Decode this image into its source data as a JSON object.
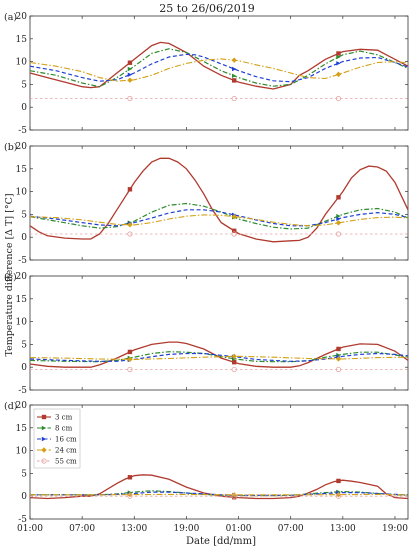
{
  "figure": {
    "title": "25 to 26/06/2019",
    "xlabel": "Date [dd/mm]",
    "ylabel": "Temperature difference [Δ T]  [°C]"
  },
  "colors": {
    "3 cm": "#b03a2e",
    "8 cm": "#2e8b2e",
    "16 cm": "#1f3fd6",
    "24 cm": "#d4a017",
    "55 cm": "#e8a3a3"
  },
  "chart_data": [
    {
      "type": "line",
      "panel_label": "(a)",
      "x_ticks": [
        "01:00",
        "07:00",
        "13:00",
        "19:00",
        "01:00",
        "07:00",
        "13:00",
        "19:00"
      ],
      "ylim": [
        -5,
        20
      ],
      "y_ticks": [
        -5,
        0,
        5,
        10,
        15,
        20
      ],
      "grid": false,
      "legend": false,
      "series": [
        {
          "name": "3 cm",
          "x": [
            0,
            2,
            4,
            6,
            7,
            8,
            10,
            12,
            14,
            15,
            16,
            18,
            20,
            22,
            24,
            26,
            28,
            30,
            31,
            32,
            34,
            36,
            38,
            40,
            41,
            42,
            43.5
          ],
          "values": [
            7.5,
            6.5,
            5.5,
            4.5,
            4.3,
            4.5,
            7.5,
            10.5,
            13.5,
            14.2,
            14,
            12,
            9,
            7,
            5.5,
            4.6,
            4.0,
            5.0,
            7.0,
            8.0,
            10.5,
            12.2,
            12.7,
            12.5,
            11.5,
            10.5,
            9
          ]
        },
        {
          "name": "8 cm",
          "x": [
            0,
            3,
            6,
            8,
            10,
            12,
            14,
            16,
            18,
            20,
            22,
            24,
            26,
            28,
            30,
            32,
            34,
            36,
            38,
            40,
            42,
            43.5
          ],
          "values": [
            8,
            7,
            5.3,
            4.5,
            6.5,
            9,
            11.8,
            12.8,
            12,
            10,
            8,
            6.5,
            5.3,
            4.6,
            5,
            7,
            9.5,
            11.5,
            12.3,
            11.5,
            9.8,
            8.5
          ]
        },
        {
          "name": "16 cm",
          "x": [
            0,
            3,
            6,
            8,
            10,
            12,
            14,
            16,
            18,
            19,
            20,
            22,
            24,
            26,
            28,
            30,
            32,
            34,
            36,
            38,
            40,
            42,
            43.5
          ],
          "values": [
            9,
            8,
            6.5,
            5.7,
            6,
            7.5,
            9.5,
            11,
            11.6,
            11.5,
            11,
            9.5,
            8,
            6.7,
            5.8,
            5.6,
            6.5,
            8.5,
            10,
            10.8,
            10.9,
            9.8,
            8.8
          ]
        },
        {
          "name": "24 cm",
          "x": [
            0,
            3,
            6,
            8,
            10,
            12,
            14,
            16,
            18,
            20,
            22,
            24,
            26,
            28,
            30,
            32,
            34,
            36,
            38,
            40,
            42,
            43.5
          ],
          "values": [
            9.8,
            9,
            7.8,
            6.5,
            5.7,
            6,
            7,
            8.5,
            9.6,
            10.3,
            10.6,
            10.2,
            9.3,
            8.5,
            7.5,
            6.5,
            6.3,
            7.5,
            8.8,
            9.8,
            10,
            9.7
          ]
        },
        {
          "name": "55 cm",
          "x": [
            0,
            43.5
          ],
          "values": [
            1.9,
            1.9
          ]
        }
      ]
    },
    {
      "type": "line",
      "panel_label": "(b)",
      "x_ticks": [
        "01:00",
        "07:00",
        "13:00",
        "19:00",
        "01:00",
        "07:00",
        "13:00",
        "19:00"
      ],
      "ylim": [
        -5,
        20
      ],
      "y_ticks": [
        -5,
        0,
        5,
        10,
        15,
        20
      ],
      "grid": false,
      "legend": false,
      "series": [
        {
          "name": "3 cm",
          "x": [
            0,
            1,
            2,
            4,
            6,
            7,
            8,
            9,
            10,
            11,
            12,
            13,
            14,
            15,
            16,
            17,
            18,
            19,
            20,
            21,
            22,
            24,
            26,
            28,
            30,
            31,
            32,
            33,
            34,
            35,
            36,
            37,
            38,
            39,
            40,
            41,
            42,
            43.5
          ],
          "values": [
            2.5,
            1.2,
            0.3,
            -0.2,
            -0.4,
            -0.4,
            0.7,
            3,
            6,
            9,
            12,
            14.5,
            16.5,
            17.3,
            17.3,
            16.5,
            15,
            12.5,
            9.5,
            6,
            3.2,
            0.8,
            -0.4,
            -1.0,
            -0.8,
            -0.7,
            0,
            2,
            5,
            7.5,
            10,
            13,
            14.8,
            15.6,
            15.4,
            14.5,
            12,
            6
          ]
        },
        {
          "name": "8 cm",
          "x": [
            0,
            3,
            6,
            8,
            10,
            12,
            14,
            16,
            18,
            20,
            22,
            24,
            26,
            28,
            30,
            32,
            34,
            36,
            38,
            40,
            42,
            43.5
          ],
          "values": [
            4.5,
            3.5,
            2.5,
            2,
            2.3,
            3.5,
            5.5,
            7,
            7.4,
            6.8,
            5.5,
            4,
            3,
            2.2,
            1.8,
            2,
            3.5,
            5,
            6,
            6.3,
            5.5,
            4.2
          ]
        },
        {
          "name": "16 cm",
          "x": [
            0,
            3,
            6,
            8,
            10,
            12,
            14,
            16,
            18,
            20,
            22,
            24,
            26,
            28,
            30,
            32,
            34,
            36,
            38,
            40,
            42,
            43.5
          ],
          "values": [
            4.6,
            4,
            3.2,
            2.7,
            2.5,
            3.2,
            4.2,
            5.3,
            6,
            6,
            5.5,
            4.7,
            3.8,
            3,
            2.5,
            2.5,
            3.2,
            4.3,
            5,
            5.4,
            5,
            4.3
          ]
        },
        {
          "name": "24 cm",
          "x": [
            0,
            3,
            6,
            8,
            10,
            12,
            14,
            16,
            18,
            20,
            22,
            24,
            26,
            28,
            30,
            32,
            34,
            36,
            38,
            40,
            42,
            43.5
          ],
          "values": [
            4.5,
            4.3,
            3.8,
            3.3,
            2.8,
            2.7,
            3.2,
            4,
            4.6,
            4.9,
            4.8,
            4.4,
            3.9,
            3.3,
            2.8,
            2.5,
            2.7,
            3.3,
            3.9,
            4.3,
            4.4,
            4.2
          ]
        },
        {
          "name": "55 cm",
          "x": [
            0,
            43.5
          ],
          "values": [
            0.7,
            0.7
          ]
        }
      ]
    },
    {
      "type": "line",
      "panel_label": "(c)",
      "x_ticks": [
        "01:00",
        "07:00",
        "13:00",
        "19:00",
        "01:00",
        "07:00",
        "13:00",
        "19:00"
      ],
      "ylim": [
        -5,
        20
      ],
      "y_ticks": [
        -5,
        0,
        5,
        10,
        15,
        20
      ],
      "grid": false,
      "legend": false,
      "series": [
        {
          "name": "3 cm",
          "x": [
            0,
            2,
            4,
            6,
            7,
            8,
            10,
            12,
            14,
            16,
            17,
            18,
            20,
            22,
            24,
            26,
            28,
            30,
            31,
            32,
            34,
            36,
            38,
            40,
            42,
            43.5
          ],
          "values": [
            0.7,
            0.2,
            0,
            0,
            0,
            0.5,
            2,
            3.8,
            5,
            5.5,
            5.5,
            5.2,
            4,
            2,
            0.8,
            0.2,
            0,
            0,
            0.3,
            1,
            2.8,
            4.4,
            5.1,
            5,
            3.5,
            1.5
          ]
        },
        {
          "name": "8 cm",
          "x": [
            0,
            4,
            8,
            10,
            12,
            14,
            16,
            18,
            20,
            22,
            24,
            26,
            28,
            30,
            32,
            34,
            36,
            38,
            40,
            42,
            43.5
          ],
          "values": [
            1.5,
            1.3,
            1.2,
            1.5,
            2.2,
            3,
            3.4,
            3.3,
            3,
            2.3,
            1.7,
            1.3,
            1.2,
            1.2,
            1.4,
            2.2,
            2.8,
            3.3,
            3.3,
            2.7,
            2.2
          ]
        },
        {
          "name": "16 cm",
          "x": [
            0,
            4,
            8,
            10,
            12,
            14,
            16,
            18,
            20,
            22,
            24,
            26,
            28,
            30,
            32,
            34,
            36,
            38,
            40,
            42,
            43.5
          ],
          "values": [
            1.8,
            1.5,
            1.3,
            1.3,
            1.7,
            2.3,
            2.8,
            3,
            3,
            2.6,
            2.2,
            1.7,
            1.5,
            1.3,
            1.4,
            1.8,
            2.4,
            2.8,
            3,
            2.8,
            2.5
          ]
        },
        {
          "name": "24 cm",
          "x": [
            0,
            4,
            8,
            12,
            16,
            20,
            24,
            28,
            32,
            36,
            40,
            43.5
          ],
          "values": [
            2.1,
            2,
            1.8,
            1.7,
            1.9,
            2.2,
            2.4,
            2.2,
            1.9,
            1.8,
            2.1,
            2.2
          ]
        },
        {
          "name": "55 cm",
          "x": [
            0,
            43.5
          ],
          "values": [
            -0.5,
            -0.5
          ]
        }
      ]
    },
    {
      "type": "line",
      "panel_label": "(d)",
      "x_ticks": [
        "01:00",
        "07:00",
        "13:00",
        "19:00",
        "01:00",
        "07:00",
        "13:00",
        "19:00"
      ],
      "ylim": [
        -5,
        20
      ],
      "y_ticks": [
        -5,
        0,
        5,
        10,
        15,
        20
      ],
      "grid": false,
      "legend": true,
      "legend_loc": "upper left",
      "series": [
        {
          "name": "3 cm",
          "x": [
            0,
            2,
            4,
            6,
            7,
            8,
            10,
            11,
            12,
            13,
            14,
            16,
            18,
            20,
            22,
            24,
            26,
            28,
            30,
            31,
            32,
            33,
            34,
            35,
            36,
            37,
            38,
            40,
            41,
            42,
            43.5
          ],
          "values": [
            -0.3,
            -0.5,
            -0.3,
            0,
            0,
            0.5,
            2.8,
            3.8,
            4.5,
            4.7,
            4.6,
            3.7,
            2,
            0.7,
            0,
            -0.3,
            -0.5,
            -0.5,
            -0.3,
            0,
            0.7,
            1.5,
            2.5,
            3.2,
            3.5,
            3.3,
            3,
            2.2,
            0.5,
            -0.3,
            -0.5
          ]
        },
        {
          "name": "8 cm",
          "x": [
            0,
            4,
            8,
            10,
            12,
            14,
            16,
            18,
            20,
            22,
            24,
            28,
            30,
            32,
            34,
            36,
            38,
            40,
            42,
            43.5
          ],
          "values": [
            0.3,
            0.3,
            0.3,
            0.5,
            0.9,
            1.2,
            1,
            0.7,
            0.4,
            0.2,
            0.1,
            0.1,
            0.2,
            0.5,
            0.8,
            1,
            0.9,
            0.6,
            0.3,
            0.2
          ]
        },
        {
          "name": "16 cm",
          "x": [
            0,
            4,
            8,
            10,
            12,
            14,
            16,
            18,
            20,
            22,
            24,
            28,
            30,
            32,
            34,
            36,
            38,
            40,
            42,
            43.5
          ],
          "values": [
            0.3,
            0.3,
            0.3,
            0.4,
            0.6,
            0.9,
            0.9,
            0.7,
            0.5,
            0.3,
            0.2,
            0.2,
            0.2,
            0.4,
            0.6,
            0.8,
            0.8,
            0.6,
            0.4,
            0.3
          ]
        },
        {
          "name": "24 cm",
          "x": [
            0,
            8,
            16,
            24,
            32,
            40,
            43.5
          ],
          "values": [
            0.3,
            0.3,
            0.4,
            0.3,
            0.3,
            0.4,
            0.3
          ]
        },
        {
          "name": "55 cm",
          "x": [
            0,
            43.5
          ],
          "values": [
            0,
            0
          ]
        }
      ]
    }
  ]
}
